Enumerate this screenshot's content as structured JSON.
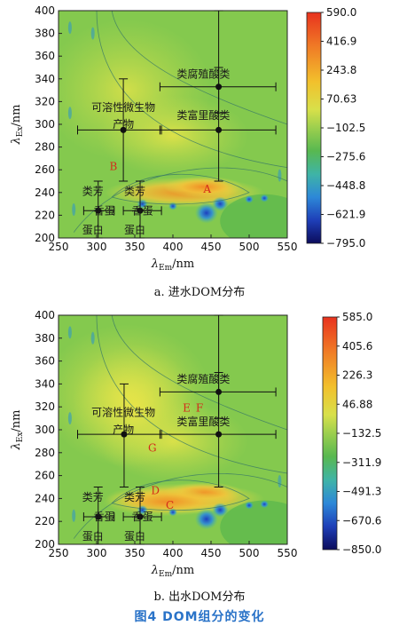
{
  "figure_title": "图4 DOM组分的变化",
  "chart_data": [
    {
      "type": "heatmap",
      "caption": "a. 进水DOM分布",
      "xlabel_main": "λ",
      "xlabel_sub": "Em",
      "xlabel_unit": "/nm",
      "ylabel_main": "λ",
      "ylabel_sub": "Ex",
      "ylabel_unit": "/nm",
      "xlim": [
        250,
        550
      ],
      "ylim": [
        200,
        400
      ],
      "xticks": [
        "250",
        "300",
        "350",
        "400",
        "450",
        "500",
        "550"
      ],
      "yticks": [
        "200",
        "220",
        "240",
        "260",
        "280",
        "300",
        "320",
        "340",
        "360",
        "380",
        "400"
      ],
      "colorbar_labels": [
        "590.0",
        "416.9",
        "243.8",
        "70.63",
        "−102.5",
        "−275.6",
        "−448.8",
        "−621.9",
        "−795.0"
      ],
      "colorbar_range": [
        -795.0,
        590.0
      ],
      "grid": false,
      "points": [
        {
          "x": 460,
          "y": 333,
          "x_range": [
            383,
            535
          ],
          "y_range": [
            310,
            350
          ]
        },
        {
          "x": 460,
          "y": 295,
          "x_range": [
            383,
            535
          ],
          "y_range": [
            250,
            400
          ]
        },
        {
          "x": 335,
          "y": 295,
          "x_range": [
            275,
            385
          ],
          "y_range": [
            250,
            340
          ]
        },
        {
          "x": 302,
          "y": 224,
          "x_range": [
            283,
            323
          ],
          "y_range": [
            200,
            250
          ]
        },
        {
          "x": 357,
          "y": 224,
          "x_range": [
            335,
            385
          ],
          "y_range": [
            200,
            250
          ]
        }
      ],
      "labels": [
        {
          "text": "类腐殖酸类",
          "x": 440,
          "y": 344
        },
        {
          "text": "类富里酸类",
          "x": 440,
          "y": 308
        },
        {
          "text": "可溶性微生物",
          "x": 335,
          "y": 315
        },
        {
          "text": "产物",
          "x": 335,
          "y": 300
        },
        {
          "text": "类芳",
          "x": 295,
          "y": 241
        },
        {
          "text": "香蛋",
          "x": 310,
          "y": 224
        },
        {
          "text": "蛋白",
          "x": 295,
          "y": 207
        },
        {
          "text": "类芳",
          "x": 350,
          "y": 241
        },
        {
          "text": "香蛋",
          "x": 360,
          "y": 224
        },
        {
          "text": "蛋白",
          "x": 350,
          "y": 207
        }
      ],
      "region_letters": [
        {
          "text": "B",
          "x": 322,
          "y": 263
        },
        {
          "text": "A",
          "x": 445,
          "y": 243
        }
      ]
    },
    {
      "type": "heatmap",
      "caption": "b. 出水DOM分布",
      "xlabel_main": "λ",
      "xlabel_sub": "Em",
      "xlabel_unit": "/nm",
      "ylabel_main": "λ",
      "ylabel_sub": "Ex",
      "ylabel_unit": "/nm",
      "xlim": [
        250,
        550
      ],
      "ylim": [
        200,
        400
      ],
      "xticks": [
        "250",
        "300",
        "350",
        "400",
        "450",
        "500",
        "550"
      ],
      "yticks": [
        "200",
        "220",
        "240",
        "260",
        "280",
        "300",
        "320",
        "340",
        "360",
        "380",
        "400"
      ],
      "colorbar_labels": [
        "585.0",
        "405.6",
        "226.3",
        "46.88",
        "−132.5",
        "−311.9",
        "−491.3",
        "−670.6",
        "−850.0"
      ],
      "colorbar_range": [
        -850.0,
        585.0
      ],
      "grid": false,
      "points": [
        {
          "x": 460,
          "y": 333,
          "x_range": [
            383,
            535
          ],
          "y_range": [
            310,
            350
          ]
        },
        {
          "x": 460,
          "y": 296,
          "x_range": [
            383,
            535
          ],
          "y_range": [
            250,
            400
          ]
        },
        {
          "x": 336,
          "y": 296,
          "x_range": [
            275,
            385
          ],
          "y_range": [
            250,
            340
          ]
        },
        {
          "x": 302,
          "y": 224,
          "x_range": [
            283,
            323
          ],
          "y_range": [
            200,
            250
          ]
        },
        {
          "x": 357,
          "y": 224,
          "x_range": [
            335,
            385
          ],
          "y_range": [
            200,
            250
          ]
        }
      ],
      "labels": [
        {
          "text": "类腐殖酸类",
          "x": 440,
          "y": 344
        },
        {
          "text": "类富里酸类",
          "x": 440,
          "y": 307
        },
        {
          "text": "可溶性微生物",
          "x": 335,
          "y": 315
        },
        {
          "text": "产物",
          "x": 335,
          "y": 300
        },
        {
          "text": "类芳",
          "x": 295,
          "y": 241
        },
        {
          "text": "香蛋",
          "x": 310,
          "y": 224
        },
        {
          "text": "蛋白",
          "x": 295,
          "y": 207
        },
        {
          "text": "类芳",
          "x": 350,
          "y": 241
        },
        {
          "text": "香蛋",
          "x": 360,
          "y": 224
        },
        {
          "text": "蛋白",
          "x": 350,
          "y": 207
        }
      ],
      "region_letters": [
        {
          "text": "E",
          "x": 418,
          "y": 319
        },
        {
          "text": "F",
          "x": 435,
          "y": 319
        },
        {
          "text": "G",
          "x": 373,
          "y": 284
        },
        {
          "text": "D",
          "x": 377,
          "y": 247
        },
        {
          "text": "C",
          "x": 396,
          "y": 234
        }
      ]
    }
  ]
}
